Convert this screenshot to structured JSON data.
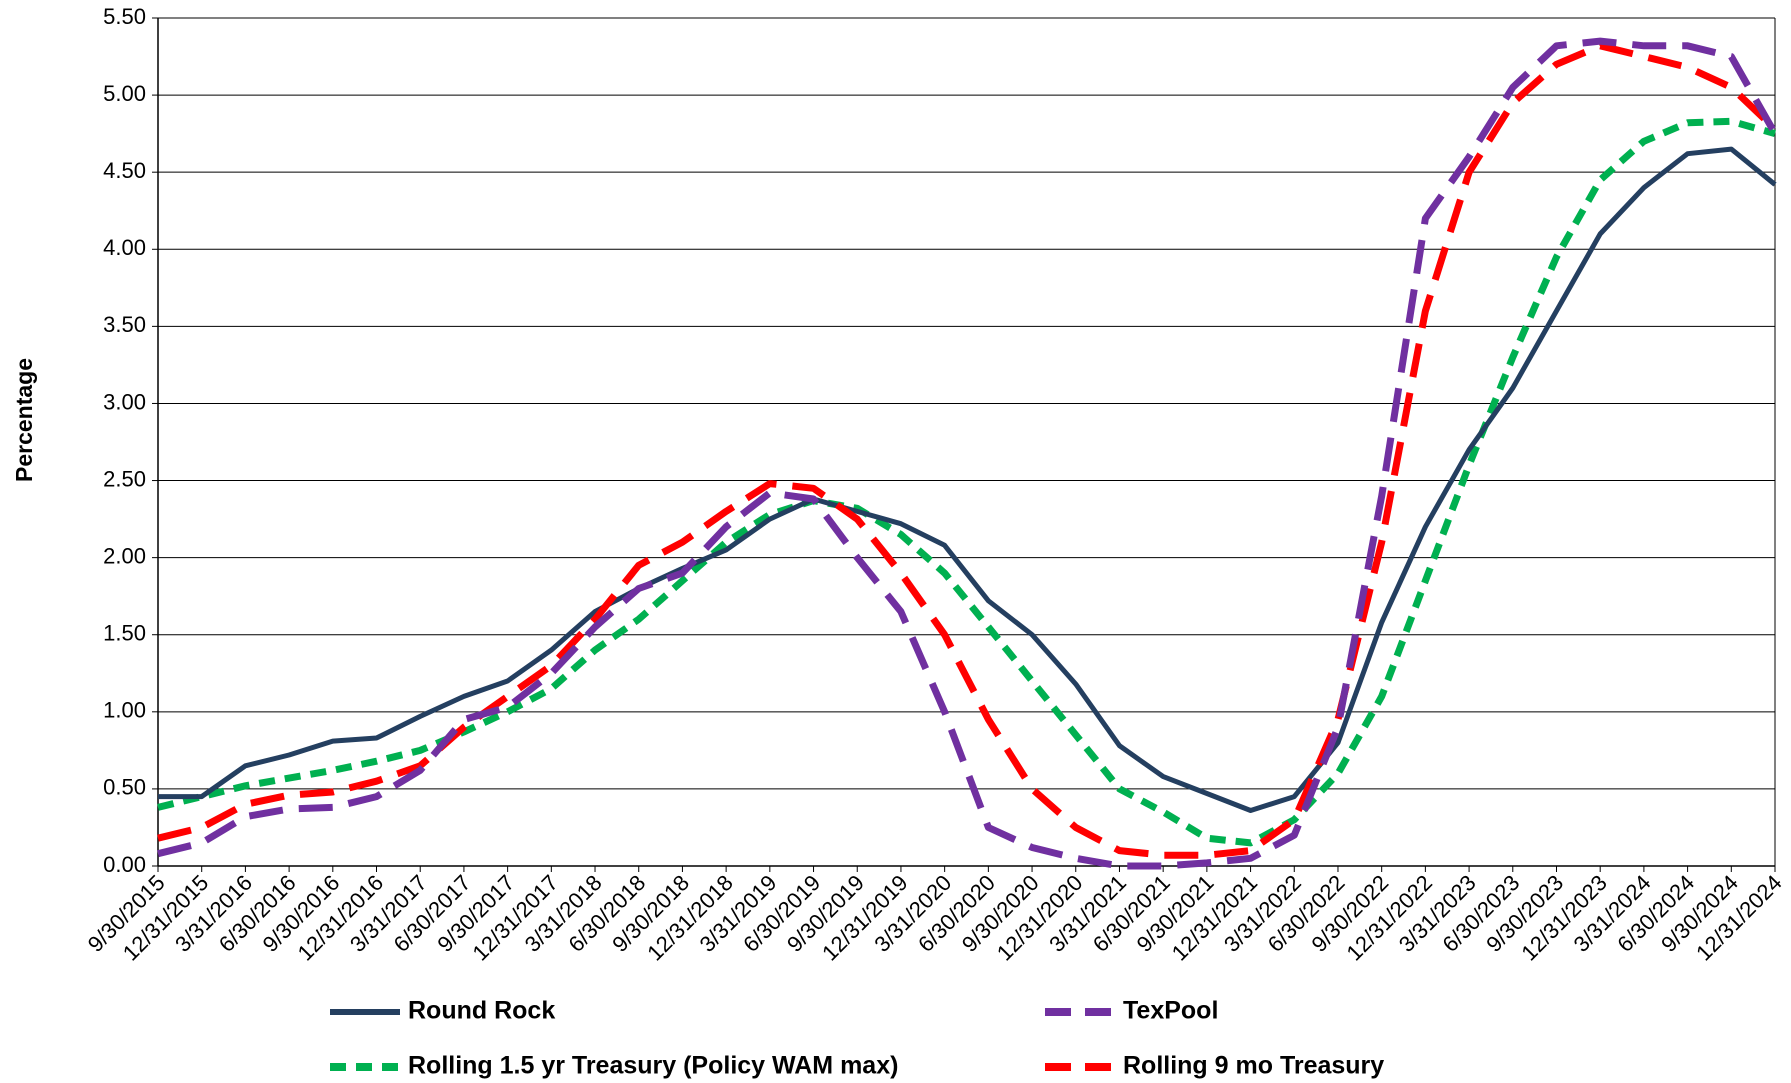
{
  "chart_data": {
    "type": "line",
    "ylabel": "Percentage",
    "categories": [
      "9/30/2015",
      "12/31/2015",
      "3/31/2016",
      "6/30/2016",
      "9/30/2016",
      "12/31/2016",
      "3/31/2017",
      "6/30/2017",
      "9/30/2017",
      "12/31/2017",
      "3/31/2018",
      "6/30/2018",
      "9/30/2018",
      "12/31/2018",
      "3/31/2019",
      "6/30/2019",
      "9/30/2019",
      "12/31/2019",
      "3/31/2020",
      "6/30/2020",
      "9/30/2020",
      "12/31/2020",
      "3/31/2021",
      "6/30/2021",
      "9/30/2021",
      "12/31/2021",
      "3/31/2022",
      "6/30/2022",
      "9/30/2022",
      "12/31/2022",
      "3/31/2023",
      "6/30/2023",
      "9/30/2023",
      "12/31/2023",
      "3/31/2024",
      "6/30/2024",
      "9/30/2024",
      "12/31/2024"
    ],
    "series": [
      {
        "name": "Round Rock",
        "color": "#243f60",
        "values": [
          0.45,
          0.45,
          0.65,
          0.72,
          0.81,
          0.83,
          0.97,
          1.1,
          1.2,
          1.4,
          1.65,
          1.8,
          1.93,
          2.05,
          2.25,
          2.38,
          2.3,
          2.22,
          2.08,
          1.72,
          1.5,
          1.18,
          0.78,
          0.58,
          0.47,
          0.36,
          0.45,
          0.8,
          1.58,
          2.2,
          2.7,
          3.1,
          3.6,
          4.1,
          4.4,
          4.62,
          4.65,
          4.42
        ]
      },
      {
        "name": "TexPool",
        "color": "#7030a0",
        "values": [
          0.08,
          0.15,
          0.32,
          0.37,
          0.38,
          0.45,
          0.62,
          0.95,
          1.03,
          1.25,
          1.55,
          1.8,
          1.9,
          2.2,
          2.42,
          2.38,
          2.0,
          1.65,
          1.0,
          0.25,
          0.12,
          0.05,
          0.0,
          0.0,
          0.02,
          0.05,
          0.2,
          0.9,
          2.4,
          4.2,
          4.6,
          5.05,
          5.32,
          5.35,
          5.32,
          5.32,
          5.25,
          4.75
        ]
      },
      {
        "name": "Rolling 1.5 yr Treasury (Policy WAM max)",
        "color": "#00b050",
        "values": [
          0.38,
          0.45,
          0.52,
          0.57,
          0.62,
          0.68,
          0.75,
          0.87,
          1.0,
          1.15,
          1.4,
          1.6,
          1.85,
          2.1,
          2.28,
          2.37,
          2.32,
          2.15,
          1.9,
          1.55,
          1.2,
          0.85,
          0.5,
          0.35,
          0.18,
          0.15,
          0.3,
          0.6,
          1.1,
          1.85,
          2.6,
          3.3,
          3.95,
          4.45,
          4.7,
          4.82,
          4.83,
          4.75
        ]
      },
      {
        "name": "Rolling 9 mo Treasury",
        "color": "#ff0000",
        "values": [
          0.18,
          0.25,
          0.4,
          0.46,
          0.48,
          0.55,
          0.65,
          0.9,
          1.1,
          1.3,
          1.6,
          1.95,
          2.1,
          2.3,
          2.48,
          2.45,
          2.25,
          1.9,
          1.5,
          0.95,
          0.5,
          0.25,
          0.1,
          0.07,
          0.07,
          0.1,
          0.3,
          0.95,
          2.1,
          3.6,
          4.5,
          4.95,
          5.2,
          5.32,
          5.25,
          5.18,
          5.05,
          4.78
        ]
      }
    ],
    "ylim": [
      0,
      5.5
    ],
    "yticks": [
      {
        "value": 0,
        "label": "0.00"
      },
      {
        "value": 0.5,
        "label": "0.50"
      },
      {
        "value": 1,
        "label": "1.00"
      },
      {
        "value": 1.5,
        "label": "1.50"
      },
      {
        "value": 2,
        "label": "2.00"
      },
      {
        "value": 2.5,
        "label": "2.50"
      },
      {
        "value": 3,
        "label": "3.00"
      },
      {
        "value": 3.5,
        "label": "3.50"
      },
      {
        "value": 4,
        "label": "4.00"
      },
      {
        "value": 4.5,
        "label": "4.50"
      },
      {
        "value": 5,
        "label": "5.00"
      },
      {
        "value": 5.5,
        "label": "5.50"
      }
    ],
    "grid": true
  }
}
